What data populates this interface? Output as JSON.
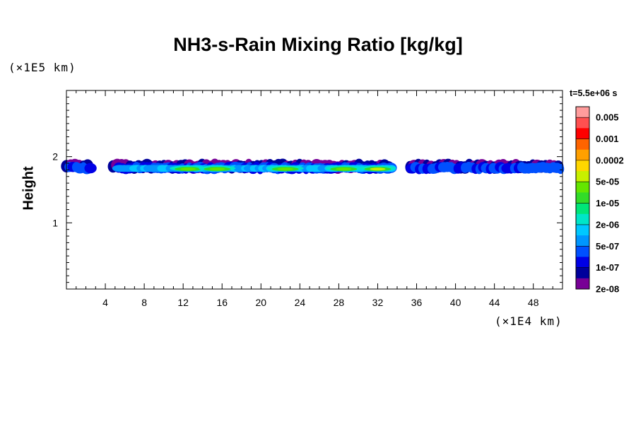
{
  "chart_data": {
    "type": "heatmap",
    "title": "NH3-s-Rain Mixing Ratio [kg/kg]",
    "ylabel": "Height",
    "y_unit": "(×1E5 km)",
    "x_unit": "(×1E4 km)",
    "time_label": "t=5.5e+06 s",
    "xlim": [
      0,
      51
    ],
    "ylim": [
      0,
      3
    ],
    "x_ticks": [
      4,
      8,
      12,
      16,
      20,
      24,
      28,
      32,
      36,
      40,
      44,
      48
    ],
    "y_ticks": [
      1,
      2
    ],
    "colorbar": {
      "labels": [
        "0.005",
        "0.001",
        "0.0002",
        "5e-05",
        "1e-05",
        "2e-06",
        "5e-07",
        "1e-07",
        "2e-08"
      ],
      "colors_top_to_bottom": [
        "#ff9c9c",
        "#ff5050",
        "#ff0000",
        "#ff6400",
        "#ffa000",
        "#ffd700",
        "#c8f000",
        "#64e600",
        "#32dc28",
        "#00e678",
        "#00e6c8",
        "#00c8ff",
        "#0096ff",
        "#0050ff",
        "#0000e6",
        "#00009b",
        "#780096"
      ]
    },
    "cloud_layer": {
      "height_range": [
        1.73,
        1.98
      ],
      "x_range": [
        0,
        51
      ],
      "peak_regions": [
        {
          "x_center": 12.5,
          "level": "1e-05"
        },
        {
          "x_center": 15.5,
          "level": "1e-05"
        },
        {
          "x_center": 22.5,
          "level": "1e-05"
        },
        {
          "x_center": 28.5,
          "level": "1e-05"
        },
        {
          "x_center": 32,
          "level": "5e-05"
        }
      ]
    }
  }
}
